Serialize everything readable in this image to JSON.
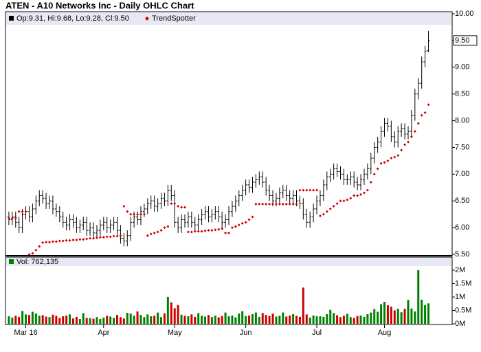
{
  "chart_data": [
    {
      "type": "ohlc",
      "title": "ATEN - A10 Networks Inc - Daily OHLC Chart",
      "legend_label": "Op:9.31, Hi:9.68, Lo:9.28, Cl:9.50",
      "color": "#000000",
      "xlim": [
        -1,
        131
      ],
      "ylim": [
        5.5,
        10.0
      ],
      "yticks": [
        {
          "value": 5.5,
          "label": "5.50"
        },
        {
          "value": 6.0,
          "label": "6.00"
        },
        {
          "value": 6.5,
          "label": "6.50"
        },
        {
          "value": 7.0,
          "label": "7.00"
        },
        {
          "value": 7.5,
          "label": "7.50"
        },
        {
          "value": 8.0,
          "label": "8.00"
        },
        {
          "value": 8.5,
          "label": "8.50"
        },
        {
          "value": 9.0,
          "label": "9.00"
        },
        {
          "value": 9.5,
          "label": "9.50"
        },
        {
          "value": 10.0,
          "label": "10.00"
        }
      ],
      "open": [
        6.2,
        6.15,
        6.2,
        6.1,
        6.0,
        6.25,
        6.3,
        6.2,
        6.35,
        6.5,
        6.6,
        6.55,
        6.45,
        6.5,
        6.35,
        6.3,
        6.2,
        6.1,
        6.05,
        6.15,
        6.1,
        6.0,
        6.05,
        6.1,
        5.95,
        6.0,
        5.9,
        5.95,
        6.05,
        6.1,
        6.0,
        6.05,
        6.1,
        5.95,
        5.8,
        5.75,
        5.85,
        6.1,
        6.2,
        6.15,
        6.3,
        6.35,
        6.45,
        6.5,
        6.4,
        6.45,
        6.55,
        6.5,
        6.7,
        6.6,
        6.1,
        6.0,
        6.15,
        6.1,
        6.2,
        6.1,
        6.05,
        6.15,
        6.25,
        6.3,
        6.2,
        6.25,
        6.3,
        6.2,
        6.1,
        6.15,
        6.3,
        6.4,
        6.5,
        6.6,
        6.7,
        6.8,
        6.75,
        6.85,
        6.9,
        6.95,
        6.85,
        6.7,
        6.6,
        6.5,
        6.55,
        6.65,
        6.7,
        6.6,
        6.55,
        6.6,
        6.5,
        6.45,
        6.25,
        6.1,
        6.2,
        6.35,
        6.5,
        6.6,
        6.8,
        6.95,
        7.0,
        7.1,
        7.05,
        7.0,
        6.9,
        6.9,
        6.95,
        6.85,
        6.8,
        6.9,
        7.0,
        7.1,
        7.3,
        7.5,
        7.6,
        7.8,
        7.95,
        7.9,
        7.7,
        7.6,
        7.8,
        7.85,
        7.75,
        7.8,
        8.1,
        8.5,
        8.7,
        9.1,
        9.31
      ],
      "high": [
        6.3,
        6.3,
        6.3,
        6.2,
        6.35,
        6.4,
        6.4,
        6.45,
        6.6,
        6.7,
        6.7,
        6.65,
        6.6,
        6.6,
        6.45,
        6.4,
        6.3,
        6.2,
        6.25,
        6.25,
        6.2,
        6.15,
        6.2,
        6.2,
        6.1,
        6.1,
        6.05,
        6.15,
        6.2,
        6.2,
        6.15,
        6.2,
        6.2,
        6.05,
        5.9,
        5.95,
        6.2,
        6.3,
        6.3,
        6.4,
        6.45,
        6.55,
        6.6,
        6.6,
        6.55,
        6.65,
        6.65,
        6.8,
        6.8,
        6.7,
        6.2,
        6.25,
        6.25,
        6.3,
        6.3,
        6.2,
        6.25,
        6.35,
        6.4,
        6.4,
        6.35,
        6.4,
        6.4,
        6.3,
        6.25,
        6.4,
        6.5,
        6.6,
        6.7,
        6.8,
        6.9,
        6.9,
        6.95,
        7.0,
        7.05,
        7.05,
        6.95,
        6.8,
        6.7,
        6.65,
        6.75,
        6.8,
        6.8,
        6.7,
        6.7,
        6.7,
        6.6,
        6.55,
        6.35,
        6.3,
        6.45,
        6.6,
        6.7,
        6.9,
        7.05,
        7.1,
        7.2,
        7.2,
        7.15,
        7.1,
        7.0,
        7.05,
        7.05,
        6.95,
        7.0,
        7.1,
        7.2,
        7.4,
        7.6,
        7.7,
        7.9,
        8.05,
        8.05,
        8.0,
        7.8,
        7.9,
        7.95,
        7.95,
        7.9,
        8.2,
        8.6,
        8.8,
        9.2,
        9.4,
        9.68
      ],
      "low": [
        6.05,
        6.05,
        6.0,
        5.9,
        5.9,
        6.15,
        6.1,
        6.1,
        6.25,
        6.4,
        6.45,
        6.35,
        6.35,
        6.25,
        6.2,
        6.1,
        6.0,
        5.95,
        5.95,
        6.0,
        5.9,
        5.9,
        5.95,
        5.85,
        5.85,
        5.8,
        5.8,
        5.85,
        5.95,
        5.9,
        5.9,
        5.95,
        5.85,
        5.7,
        5.65,
        5.65,
        5.75,
        6.0,
        6.05,
        6.05,
        6.2,
        6.25,
        6.35,
        6.3,
        6.3,
        6.35,
        6.4,
        6.4,
        6.5,
        6.0,
        5.9,
        5.9,
        6.0,
        6.0,
        6.0,
        5.95,
        5.95,
        6.05,
        6.15,
        6.1,
        6.1,
        6.15,
        6.1,
        6.0,
        6.0,
        6.05,
        6.2,
        6.3,
        6.4,
        6.5,
        6.6,
        6.65,
        6.65,
        6.75,
        6.8,
        6.75,
        6.6,
        6.5,
        6.4,
        6.4,
        6.45,
        6.55,
        6.5,
        6.45,
        6.45,
        6.4,
        6.35,
        6.15,
        6.0,
        6.0,
        6.1,
        6.25,
        6.4,
        6.5,
        6.7,
        6.85,
        6.9,
        6.95,
        6.9,
        6.8,
        6.8,
        6.8,
        6.75,
        6.7,
        6.7,
        6.8,
        6.9,
        7.0,
        7.2,
        7.4,
        7.5,
        7.7,
        7.8,
        7.6,
        7.5,
        7.5,
        7.7,
        7.65,
        7.65,
        7.7,
        8.0,
        8.4,
        8.6,
        9.0,
        9.28
      ],
      "close": [
        6.15,
        6.2,
        6.1,
        6.0,
        6.25,
        6.3,
        6.2,
        6.35,
        6.5,
        6.6,
        6.55,
        6.45,
        6.5,
        6.35,
        6.3,
        6.2,
        6.1,
        6.05,
        6.15,
        6.1,
        6.0,
        6.05,
        6.1,
        5.95,
        6.0,
        5.9,
        5.95,
        6.05,
        6.1,
        6.0,
        6.05,
        6.1,
        5.95,
        5.8,
        5.75,
        5.85,
        6.1,
        6.2,
        6.15,
        6.3,
        6.35,
        6.45,
        6.5,
        6.4,
        6.45,
        6.55,
        6.5,
        6.7,
        6.6,
        6.1,
        6.0,
        6.15,
        6.1,
        6.2,
        6.1,
        6.05,
        6.15,
        6.25,
        6.3,
        6.2,
        6.25,
        6.3,
        6.2,
        6.1,
        6.15,
        6.3,
        6.4,
        6.5,
        6.6,
        6.7,
        6.8,
        6.75,
        6.85,
        6.9,
        6.95,
        6.85,
        6.7,
        6.6,
        6.5,
        6.55,
        6.65,
        6.7,
        6.6,
        6.55,
        6.6,
        6.5,
        6.45,
        6.25,
        6.1,
        6.2,
        6.35,
        6.5,
        6.6,
        6.8,
        6.95,
        7.0,
        7.1,
        7.05,
        7.0,
        6.9,
        6.9,
        6.95,
        6.85,
        6.8,
        6.9,
        7.0,
        7.1,
        7.3,
        7.5,
        7.6,
        7.8,
        7.95,
        7.9,
        7.7,
        7.6,
        7.8,
        7.85,
        7.75,
        7.8,
        8.1,
        8.5,
        8.7,
        9.1,
        9.3,
        9.5
      ],
      "trendspotter": {
        "name": "TrendSpotter",
        "color": "#cc0000",
        "values": [
          6.18,
          6.18,
          6.18,
          6.3,
          6.3,
          6.3,
          5.5,
          5.52,
          5.58,
          5.65,
          5.72,
          5.73,
          5.73,
          5.74,
          5.74,
          5.75,
          5.75,
          5.76,
          5.76,
          5.77,
          5.77,
          5.78,
          5.78,
          5.79,
          5.8,
          5.8,
          5.81,
          5.82,
          5.82,
          5.83,
          5.83,
          5.84,
          5.84,
          5.85,
          6.4,
          6.3,
          6.25,
          6.25,
          6.25,
          6.25,
          6.25,
          5.85,
          5.88,
          5.9,
          5.92,
          5.95,
          6.0,
          6.02,
          6.45,
          6.45,
          6.4,
          6.38,
          6.38,
          5.92,
          5.92,
          5.93,
          5.93,
          5.93,
          5.94,
          5.95,
          5.95,
          5.96,
          5.97,
          5.98,
          5.9,
          5.9,
          6.0,
          6.02,
          6.05,
          6.08,
          6.1,
          6.15,
          6.2,
          6.44,
          6.44,
          6.44,
          6.44,
          6.44,
          6.44,
          6.44,
          6.44,
          6.44,
          6.44,
          6.44,
          6.44,
          6.44,
          6.7,
          6.7,
          6.7,
          6.7,
          6.7,
          6.7,
          6.22,
          6.25,
          6.3,
          6.35,
          6.4,
          6.45,
          6.5,
          6.5,
          6.52,
          6.55,
          6.6,
          6.6,
          6.62,
          6.65,
          6.7,
          6.85,
          7.0,
          7.1,
          7.2,
          7.22,
          7.25,
          7.3,
          7.32,
          7.35,
          7.45,
          7.55,
          7.6,
          7.7,
          7.8,
          7.95,
          8.1,
          8.15,
          8.3
        ]
      }
    },
    {
      "type": "volume",
      "legend_label": "Vol: 762,135",
      "up_color": "#008000",
      "down_color": "#cc0000",
      "xlim": [
        -1,
        131
      ],
      "ylim": [
        0,
        2460000
      ],
      "yticks": [
        {
          "value": 0,
          "label": "0M"
        },
        {
          "value": 500000,
          "label": "0.5M"
        },
        {
          "value": 1000000,
          "label": "1M"
        },
        {
          "value": 1500000,
          "label": "1.5M"
        },
        {
          "value": 2000000,
          "label": "2M"
        }
      ],
      "xticks": [
        {
          "value": 5,
          "label": "Mar 16"
        },
        {
          "value": 28,
          "label": "Apr"
        },
        {
          "value": 49,
          "label": "May"
        },
        {
          "value": 70,
          "label": "Jun"
        },
        {
          "value": 91,
          "label": "Jul"
        },
        {
          "value": 111,
          "label": "Aug"
        }
      ],
      "values": [
        280000,
        230000,
        300000,
        260000,
        480000,
        350000,
        330000,
        450000,
        380000,
        300000,
        320000,
        270000,
        250000,
        340000,
        300000,
        220000,
        280000,
        310000,
        350000,
        200000,
        260000,
        180000,
        400000,
        220000,
        210000,
        190000,
        250000,
        180000,
        230000,
        300000,
        270000,
        220000,
        330000,
        250000,
        200000,
        410000,
        380000,
        300000,
        460000,
        330000,
        250000,
        350000,
        280000,
        300000,
        420000,
        250000,
        390000,
        1000000,
        800000,
        580000,
        700000,
        340000,
        300000,
        280000,
        350000,
        260000,
        400000,
        300000,
        270000,
        330000,
        250000,
        300000,
        240000,
        290000,
        420000,
        280000,
        310000,
        240000,
        380000,
        470000,
        290000,
        310000,
        360000,
        420000,
        260000,
        400000,
        330000,
        290000,
        380000,
        270000,
        300000,
        420000,
        270000,
        310000,
        360000,
        300000,
        260000,
        1350000,
        350000,
        230000,
        310000,
        280000,
        280000,
        260000,
        360000,
        520000,
        400000,
        320000,
        250000,
        300000,
        370000,
        250000,
        220000,
        290000,
        310000,
        260000,
        360000,
        420000,
        550000,
        450000,
        730000,
        820000,
        690000,
        640000,
        500000,
        560000,
        430000,
        560000,
        890000,
        570000,
        460000,
        2000000,
        900000,
        700000,
        762135
      ]
    }
  ]
}
